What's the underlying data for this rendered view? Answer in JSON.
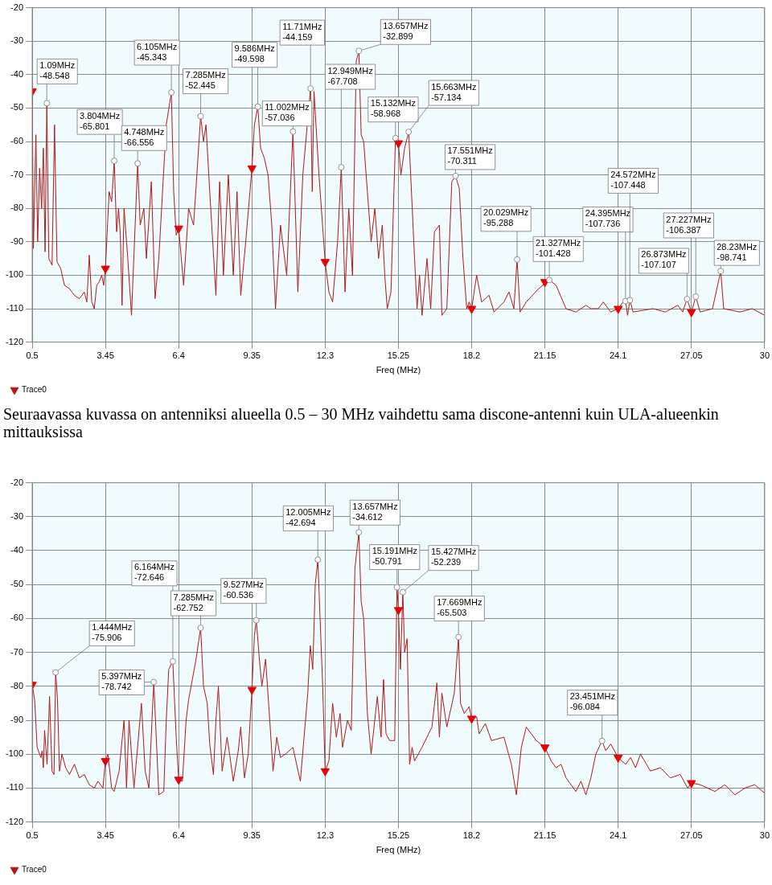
{
  "chart_data": [
    {
      "type": "line",
      "xlabel": "Freq (MHz)",
      "xlim": [
        0.5,
        30
      ],
      "xticks": [
        0.5,
        3.45,
        6.4,
        9.35,
        12.3,
        15.25,
        18.2,
        21.15,
        24.1,
        27.05,
        30
      ],
      "ylim": [
        -120,
        -20
      ],
      "yticks": [
        -120,
        -110,
        -100,
        -90,
        -80,
        -70,
        -60,
        -50,
        -40,
        -30,
        -20
      ],
      "grid": true,
      "legend": "bottom left",
      "series": [
        {
          "name": "Trace0",
          "color": "#b01818",
          "marker": "none",
          "x": [
            0.5,
            0.55,
            0.65,
            0.72,
            0.8,
            0.88,
            0.95,
            1.02,
            1.09,
            1.17,
            1.3,
            1.4,
            1.5,
            1.65,
            1.8,
            2.0,
            2.2,
            2.4,
            2.6,
            2.7,
            2.8,
            2.9,
            3.0,
            3.1,
            3.2,
            3.3,
            3.38,
            3.45,
            3.6,
            3.7,
            3.804,
            3.9,
            3.98,
            4.05,
            4.12,
            4.2,
            4.35,
            4.5,
            4.748,
            4.85,
            5.0,
            5.1,
            5.3,
            5.45,
            5.6,
            5.9,
            6.105,
            6.2,
            6.3,
            6.4,
            6.6,
            6.8,
            7.0,
            7.285,
            7.4,
            7.5,
            7.65,
            7.9,
            8.05,
            8.2,
            8.4,
            8.6,
            8.75,
            8.9,
            9.1,
            9.35,
            9.45,
            9.586,
            9.7,
            9.85,
            10.0,
            10.15,
            10.3,
            10.5,
            10.75,
            11.002,
            11.2,
            11.4,
            11.71,
            11.78,
            11.85,
            12.05,
            12.3,
            12.45,
            12.6,
            12.8,
            12.949,
            13.1,
            13.25,
            13.4,
            13.55,
            13.657,
            13.75,
            13.85,
            14.0,
            14.15,
            14.3,
            14.45,
            14.6,
            14.7,
            14.8,
            14.95,
            15.132,
            15.25,
            15.35,
            15.5,
            15.663,
            15.9,
            16.0,
            16.1,
            16.2,
            16.4,
            16.55,
            16.7,
            16.9,
            17.0,
            17.2,
            17.4,
            17.551,
            17.7,
            17.85,
            18.0,
            18.1,
            18.2,
            18.4,
            18.6,
            18.75,
            18.9,
            19.1,
            19.5,
            19.7,
            19.9,
            20.029,
            20.15,
            20.4,
            20.9,
            21.327,
            21.6,
            22.0,
            22.4,
            22.8,
            23.0,
            23.3,
            23.5,
            23.8,
            24.1,
            24.3,
            24.395,
            24.48,
            24.572,
            24.7,
            25.5,
            26.0,
            26.5,
            26.7,
            26.873,
            27.05,
            27.227,
            27.4,
            27.9,
            28.23,
            28.35,
            29.0,
            29.5,
            30
          ],
          "values": [
            -45,
            -92,
            -58,
            -90,
            -68,
            -80,
            -62,
            -93,
            -48.548,
            -95,
            -97,
            -55,
            -96,
            -98,
            -103,
            -104,
            -106,
            -107,
            -105,
            -108,
            -94,
            -108,
            -110,
            -103,
            -102,
            -100,
            -103,
            -98,
            -75,
            -78,
            -65.801,
            -87,
            -80,
            -88,
            -109,
            -80,
            -95,
            -112,
            -66.556,
            -85,
            -80,
            -95,
            -72,
            -107,
            -95,
            -55,
            -45.343,
            -75,
            -88,
            -86,
            -103,
            -80,
            -85,
            -52.445,
            -60,
            -55,
            -75,
            -106,
            -72,
            -100,
            -70,
            -100,
            -75,
            -106,
            -90,
            -68,
            -55,
            -49.598,
            -62,
            -65,
            -70,
            -85,
            -110,
            -85,
            -100,
            -57.036,
            -105,
            -70,
            -44.159,
            -75,
            -45,
            -70,
            -96,
            -105,
            -108,
            -90,
            -67.708,
            -105,
            -80,
            -100,
            -36,
            -32.899,
            -58,
            -60,
            -75,
            -90,
            -80,
            -95,
            -85,
            -100,
            -110,
            -105,
            -58.968,
            -60.5,
            -70,
            -62,
            -57.134,
            -95,
            -110,
            -100,
            -112,
            -95,
            -110,
            -87,
            -85,
            -112,
            -110,
            -72,
            -70.311,
            -74,
            -95,
            -110,
            -108,
            -110,
            -100,
            -108,
            -107,
            -106,
            -111,
            -108,
            -105,
            -110,
            -95.288,
            -111,
            -108,
            -104,
            -101.428,
            -103,
            -110,
            -111,
            -109,
            -110,
            -110,
            -108,
            -111,
            -110,
            -108,
            -107.736,
            -112,
            -107.448,
            -111,
            -110,
            -111,
            -109,
            -111,
            -107.107,
            -111,
            -106.387,
            -111,
            -110,
            -98.741,
            -110,
            -111,
            -110,
            -112
          ]
        },
        {
          "type": "scatter",
          "color": "#ee0000",
          "marker": "triangle",
          "x": [
            0.5,
            3.45,
            6.4,
            9.35,
            12.3,
            15.25,
            18.2,
            21.15,
            24.1,
            27.05
          ],
          "values": [
            -45,
            -98,
            -86,
            -68,
            -96,
            -60.5,
            -110,
            -102,
            -110,
            -111
          ]
        }
      ],
      "annotations": [
        {
          "text": "1.09MHz\n-48.548",
          "x": 1.09,
          "y": -48.548
        },
        {
          "text": "3.804MHz\n-65.801",
          "x": 3.804,
          "y": -65.801
        },
        {
          "text": "4.748MHz\n-66.556",
          "x": 4.748,
          "y": -66.556
        },
        {
          "text": "6.105MHz\n-45.343",
          "x": 6.105,
          "y": -45.343
        },
        {
          "text": "7.285MHz\n-52.445",
          "x": 7.285,
          "y": -52.445
        },
        {
          "text": "9.586MHz\n-49.598",
          "x": 9.586,
          "y": -49.598
        },
        {
          "text": "11.002MHz\n-57.036",
          "x": 11.002,
          "y": -57.036
        },
        {
          "text": "11.71MHz\n-44.159",
          "x": 11.71,
          "y": -44.159
        },
        {
          "text": "12.949MHz\n-67.708",
          "x": 12.949,
          "y": -67.708
        },
        {
          "text": "13.657MHz\n-32.899",
          "x": 13.657,
          "y": -32.899
        },
        {
          "text": "15.132MHz\n-58.968",
          "x": 15.132,
          "y": -58.968
        },
        {
          "text": "15.663MHz\n-57.134",
          "x": 15.663,
          "y": -57.134
        },
        {
          "text": "17.551MHz\n-70.311",
          "x": 17.551,
          "y": -70.311
        },
        {
          "text": "20.029MHz\n-95.288",
          "x": 20.029,
          "y": -95.288
        },
        {
          "text": "21.327MHz\n-101.428",
          "x": 21.327,
          "y": -101.428
        },
        {
          "text": "24.395MHz\n-107.736",
          "x": 24.395,
          "y": -107.736
        },
        {
          "text": "24.572MHz\n-107.448",
          "x": 24.572,
          "y": -107.448
        },
        {
          "text": "26.873MHz\n-107.107",
          "x": 26.873,
          "y": -107.107
        },
        {
          "text": "27.227MHz\n-106.387",
          "x": 27.227,
          "y": -106.387
        },
        {
          "text": "28.23MHz\n-98.741",
          "x": 28.23,
          "y": -98.741
        }
      ]
    },
    {
      "type": "line",
      "title": "Seuraavassa kuvassa on antenniksi alueella 0.5 – 30 MHz vaihdettu sama discone-antenni kuin ULA-alueenkin mittauksissa",
      "xlabel": "Freq (MHz)",
      "xlim": [
        0.5,
        30
      ],
      "xticks": [
        0.5,
        3.45,
        6.4,
        9.35,
        12.3,
        15.25,
        18.2,
        21.15,
        24.1,
        27.05,
        30
      ],
      "ylim": [
        -120,
        -20
      ],
      "yticks": [
        -120,
        -110,
        -100,
        -90,
        -80,
        -70,
        -60,
        -50,
        -40,
        -30,
        -20
      ],
      "grid": true,
      "legend": "bottom left",
      "series": [
        {
          "name": "Trace0",
          "color": "#b01818",
          "marker": "none",
          "x": [
            0.5,
            0.6,
            0.7,
            0.8,
            0.85,
            0.9,
            0.95,
            1.0,
            1.1,
            1.2,
            1.3,
            1.38,
            1.444,
            1.52,
            1.6,
            1.7,
            1.85,
            2.0,
            2.2,
            2.4,
            2.6,
            2.8,
            3.0,
            3.15,
            3.35,
            3.45,
            3.55,
            3.7,
            3.8,
            4.0,
            4.2,
            4.3,
            4.4,
            4.6,
            4.9,
            5.05,
            5.2,
            5.397,
            5.6,
            5.8,
            5.9,
            6.0,
            6.164,
            6.3,
            6.4,
            6.55,
            6.7,
            6.8,
            7.1,
            7.285,
            7.4,
            7.55,
            7.65,
            7.8,
            7.9,
            8.0,
            8.15,
            8.35,
            8.45,
            8.6,
            8.8,
            8.9,
            9.05,
            9.2,
            9.35,
            9.45,
            9.527,
            9.65,
            9.75,
            9.9,
            10.05,
            10.2,
            10.35,
            10.5,
            10.7,
            11.0,
            11.15,
            11.3,
            11.6,
            11.7,
            11.8,
            11.9,
            12.005,
            12.2,
            12.3,
            12.45,
            12.6,
            12.75,
            12.9,
            13.0,
            13.2,
            13.35,
            13.5,
            13.657,
            13.75,
            13.85,
            14.0,
            14.15,
            14.4,
            14.55,
            14.65,
            14.75,
            14.9,
            15.1,
            15.191,
            15.25,
            15.33,
            15.427,
            15.5,
            15.6,
            15.7,
            15.8,
            15.9,
            16.2,
            16.6,
            16.8,
            16.9,
            17.0,
            17.2,
            17.5,
            17.669,
            17.75,
            17.9,
            18.1,
            18.2,
            18.4,
            18.5,
            18.75,
            19.0,
            19.5,
            19.8,
            20.0,
            20.2,
            20.4,
            20.8,
            21.15,
            21.4,
            21.6,
            21.8,
            22.0,
            22.4,
            22.6,
            22.8,
            23.0,
            23.2,
            23.451,
            23.6,
            23.8,
            24.1,
            24.4,
            24.6,
            24.8,
            25.0,
            25.4,
            25.8,
            26.2,
            26.6,
            26.9,
            27.05,
            27.4,
            28.0,
            28.4,
            28.8,
            29.2,
            29.6,
            30
          ],
          "values": [
            -79.5,
            -84,
            -98,
            -100,
            -101,
            -99,
            -104,
            -93,
            -103,
            -83,
            -105,
            -106,
            -75.906,
            -84,
            -105,
            -100,
            -104,
            -106,
            -103,
            -107,
            -106,
            -109,
            -110,
            -108,
            -110,
            -102,
            -100,
            -110,
            -111,
            -105,
            -90,
            -110,
            -90,
            -110,
            -85,
            -105,
            -110,
            -78.742,
            -112,
            -111,
            -90,
            -75,
            -72.646,
            -95,
            -107.5,
            -108,
            -90,
            -84,
            -72,
            -62.752,
            -80,
            -85,
            -97,
            -106,
            -90,
            -80,
            -105,
            -95,
            -100,
            -108,
            -99,
            -92,
            -107,
            -100,
            -81,
            -65,
            -60.536,
            -72,
            -80,
            -72,
            -88,
            -105,
            -95,
            -101,
            -100,
            -98,
            -103,
            -108,
            -82,
            -68,
            -75,
            -50,
            -42.694,
            -80,
            -105,
            -102,
            -85,
            -95,
            -88,
            -98,
            -90,
            -93,
            -45,
            -34.612,
            -55,
            -60,
            -88,
            -100,
            -83,
            -95,
            -78,
            -94,
            -96,
            -96,
            -50.791,
            -57.5,
            -75,
            -52.239,
            -70,
            -66,
            -103,
            -98,
            -102,
            -98,
            -92,
            -79,
            -95,
            -82,
            -92,
            -82,
            -65.503,
            -85,
            -88,
            -86,
            -89.5,
            -89,
            -94,
            -91,
            -96,
            -95,
            -103,
            -112,
            -98,
            -92,
            -96,
            -98,
            -102,
            -104,
            -103,
            -107,
            -111,
            -108,
            -112,
            -107,
            -100,
            -96.084,
            -99,
            -97,
            -101,
            -103,
            -101,
            -104,
            -100,
            -105,
            -104,
            -107,
            -106,
            -110,
            -108.5,
            -109,
            -111,
            -109,
            -112,
            -110,
            -109,
            -111.5
          ]
        },
        {
          "type": "scatter",
          "color": "#ee0000",
          "marker": "triangle",
          "x": [
            0.5,
            3.45,
            6.4,
            9.35,
            12.3,
            15.25,
            18.2,
            21.15,
            24.1,
            27.05
          ],
          "values": [
            -79.5,
            -102,
            -107.5,
            -81,
            -105,
            -57.5,
            -89.5,
            -98,
            -101,
            -108.5
          ]
        }
      ],
      "annotations": [
        {
          "text": "1.444MHz\n-75.906",
          "x": 1.444,
          "y": -75.906
        },
        {
          "text": "5.397MHz\n-78.742",
          "x": 5.397,
          "y": -78.742
        },
        {
          "text": "6.164MHz\n-72.646",
          "x": 6.164,
          "y": -72.646
        },
        {
          "text": "7.285MHz\n-62.752",
          "x": 7.285,
          "y": -62.752
        },
        {
          "text": "9.527MHz\n-60.536",
          "x": 9.527,
          "y": -60.536
        },
        {
          "text": "12.005MHz\n-42.694",
          "x": 12.005,
          "y": -42.694
        },
        {
          "text": "13.657MHz\n-34.612",
          "x": 13.657,
          "y": -34.612
        },
        {
          "text": "15.191MHz\n-50.791",
          "x": 15.191,
          "y": -50.791
        },
        {
          "text": "15.427MHz\n-52.239",
          "x": 15.427,
          "y": -52.239
        },
        {
          "text": "17.669MHz\n-65.503",
          "x": 17.669,
          "y": -65.503
        },
        {
          "text": "23.451MHz\n-96.084",
          "x": 23.451,
          "y": -96.084
        }
      ]
    }
  ]
}
